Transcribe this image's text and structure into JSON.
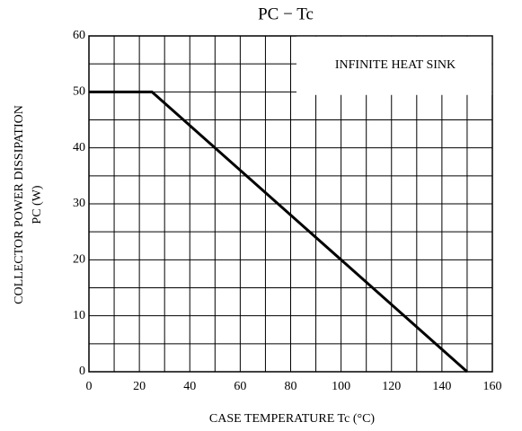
{
  "chart_data": {
    "type": "line",
    "title": "PC − Tc",
    "xlabel": "CASE TEMPERATURE   Tc   (°C)",
    "ylabel": [
      "COLLECTOR POWER DISSIPATION",
      "PC   (W)"
    ],
    "annotation": "INFINITE HEAT SINK",
    "x": [
      0,
      25,
      150
    ],
    "series": [
      {
        "name": "Pc",
        "color": "#000000",
        "values": [
          50,
          50,
          0
        ]
      }
    ],
    "xlim": [
      0,
      160
    ],
    "ylim": [
      0,
      60
    ],
    "xticks": [
      0,
      20,
      40,
      60,
      80,
      100,
      120,
      140,
      160
    ],
    "yticks": [
      0,
      10,
      20,
      30,
      40,
      50,
      60
    ],
    "xminor": [
      10,
      30,
      50,
      70,
      90,
      110,
      130,
      150
    ],
    "yminor": [
      5,
      15,
      25,
      35,
      45,
      55
    ],
    "grid": true
  }
}
